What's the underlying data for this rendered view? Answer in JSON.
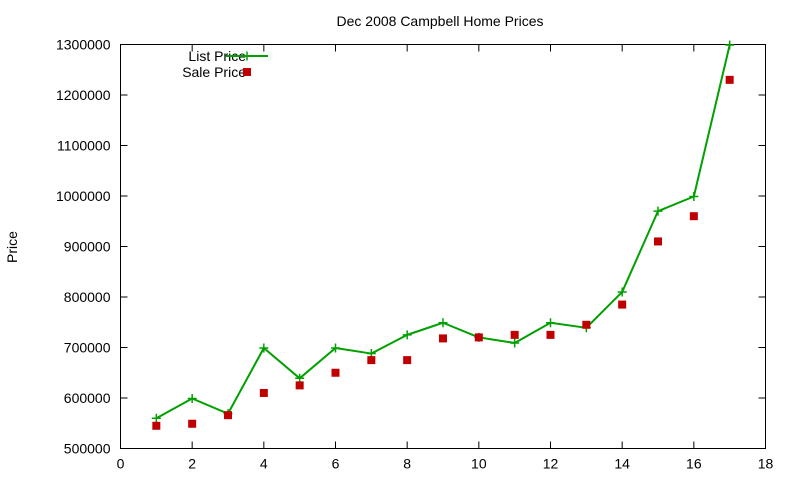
{
  "chart_data": {
    "type": "line",
    "title": "Dec 2008 Campbell Home Prices",
    "xlabel": "",
    "ylabel": "Price",
    "xlim": [
      0,
      18
    ],
    "ylim": [
      500000,
      1300000
    ],
    "x_ticks": [
      0,
      2,
      4,
      6,
      8,
      10,
      12,
      14,
      16,
      18
    ],
    "y_ticks": [
      500000,
      600000,
      700000,
      800000,
      900000,
      1000000,
      1100000,
      1200000,
      1300000
    ],
    "grid": false,
    "legend_position": "top-left",
    "series": [
      {
        "name": "List Price",
        "style": "line-plus",
        "color": "#00a000",
        "x": [
          1,
          2,
          3,
          4,
          5,
          6,
          7,
          8,
          9,
          10,
          11,
          12,
          13,
          14,
          15,
          16,
          17
        ],
        "y": [
          560000,
          599000,
          569000,
          699000,
          639000,
          699000,
          688000,
          725000,
          749000,
          720000,
          709000,
          749000,
          739000,
          810000,
          970000,
          999000,
          1299000
        ]
      },
      {
        "name": "Sale Price",
        "style": "square",
        "color": "#c00000",
        "x": [
          1,
          2,
          3,
          4,
          5,
          6,
          7,
          8,
          9,
          10,
          11,
          12,
          13,
          14,
          15,
          16,
          17
        ],
        "y": [
          545000,
          549000,
          566000,
          610000,
          625000,
          650000,
          675000,
          675000,
          718000,
          720000,
          725000,
          725000,
          745000,
          785000,
          910000,
          960000,
          1230000
        ]
      }
    ]
  }
}
